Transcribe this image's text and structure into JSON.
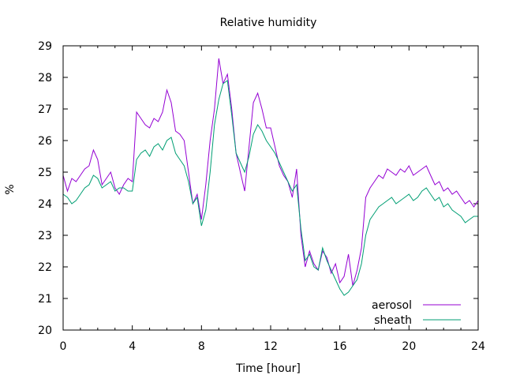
{
  "chart_data": {
    "type": "line",
    "title": "Relative humidity",
    "xlabel": "Time [hour]",
    "ylabel": "%",
    "xlim": [
      0,
      24
    ],
    "ylim": [
      20,
      29
    ],
    "xticks": [
      0,
      4,
      8,
      12,
      16,
      20,
      24
    ],
    "yticks": [
      20,
      21,
      22,
      23,
      24,
      25,
      26,
      27,
      28,
      29
    ],
    "grid": false,
    "legend_position": "bottom-right",
    "series": [
      {
        "name": "aerosol",
        "color": "#9400d3",
        "x": [
          0,
          0.25,
          0.5,
          0.75,
          1,
          1.25,
          1.5,
          1.75,
          2,
          2.25,
          2.5,
          2.75,
          3,
          3.25,
          3.5,
          3.75,
          4,
          4.25,
          4.5,
          4.75,
          5,
          5.25,
          5.5,
          5.75,
          6,
          6.25,
          6.5,
          6.75,
          7,
          7.25,
          7.5,
          7.75,
          8,
          8.25,
          8.5,
          8.75,
          9,
          9.25,
          9.5,
          9.75,
          10,
          10.25,
          10.5,
          10.75,
          11,
          11.25,
          11.5,
          11.75,
          12,
          12.25,
          12.5,
          12.75,
          13,
          13.25,
          13.5,
          13.75,
          14,
          14.25,
          14.5,
          14.75,
          15,
          15.25,
          15.5,
          15.75,
          16,
          16.25,
          16.5,
          16.75,
          17,
          17.25,
          17.5,
          17.75,
          18,
          18.25,
          18.5,
          18.75,
          19,
          19.25,
          19.5,
          19.75,
          20,
          20.25,
          20.5,
          20.75,
          21,
          21.25,
          21.5,
          21.75,
          22,
          22.25,
          22.5,
          22.75,
          23,
          23.25,
          23.5,
          23.75,
          24
        ],
        "values": [
          24.9,
          24.4,
          24.8,
          24.7,
          24.9,
          25.1,
          25.2,
          25.7,
          25.4,
          24.6,
          24.8,
          25.0,
          24.5,
          24.3,
          24.6,
          24.8,
          24.7,
          26.9,
          26.7,
          26.5,
          26.4,
          26.7,
          26.6,
          26.9,
          27.6,
          27.2,
          26.3,
          26.2,
          26.0,
          25.0,
          24.0,
          24.3,
          23.5,
          24.6,
          26.0,
          27.0,
          28.6,
          27.8,
          28.1,
          27.0,
          25.6,
          25.0,
          24.4,
          25.8,
          27.2,
          27.5,
          27.0,
          26.4,
          26.4,
          25.8,
          25.2,
          24.9,
          24.7,
          24.2,
          25.1,
          23.0,
          22.0,
          22.5,
          22.1,
          21.9,
          22.5,
          22.3,
          21.8,
          22.1,
          21.5,
          21.7,
          22.4,
          21.4,
          21.9,
          22.6,
          24.2,
          24.5,
          24.7,
          24.9,
          24.8,
          25.1,
          25.0,
          24.9,
          25.1,
          25.0,
          25.2,
          24.9,
          25.0,
          25.1,
          25.2,
          24.9,
          24.6,
          24.7,
          24.4,
          24.5,
          24.3,
          24.4,
          24.2,
          24.0,
          24.1,
          23.9,
          24.1
        ],
        "legend_label": "aerosol"
      },
      {
        "name": "sheath",
        "color": "#009e73",
        "x": [
          0,
          0.25,
          0.5,
          0.75,
          1,
          1.25,
          1.5,
          1.75,
          2,
          2.25,
          2.5,
          2.75,
          3,
          3.25,
          3.5,
          3.75,
          4,
          4.25,
          4.5,
          4.75,
          5,
          5.25,
          5.5,
          5.75,
          6,
          6.25,
          6.5,
          6.75,
          7,
          7.25,
          7.5,
          7.75,
          8,
          8.25,
          8.5,
          8.75,
          9,
          9.25,
          9.5,
          9.75,
          10,
          10.25,
          10.5,
          10.75,
          11,
          11.25,
          11.5,
          11.75,
          12,
          12.25,
          12.5,
          12.75,
          13,
          13.25,
          13.5,
          13.75,
          14,
          14.25,
          14.5,
          14.75,
          15,
          15.25,
          15.5,
          15.75,
          16,
          16.25,
          16.5,
          16.75,
          17,
          17.25,
          17.5,
          17.75,
          18,
          18.25,
          18.5,
          18.75,
          19,
          19.25,
          19.5,
          19.75,
          20,
          20.25,
          20.5,
          20.75,
          21,
          21.25,
          21.5,
          21.75,
          22,
          22.25,
          22.5,
          22.75,
          23,
          23.25,
          23.5,
          23.75,
          24
        ],
        "values": [
          24.3,
          24.2,
          24.0,
          24.1,
          24.3,
          24.5,
          24.6,
          24.9,
          24.8,
          24.5,
          24.6,
          24.7,
          24.4,
          24.5,
          24.5,
          24.4,
          24.4,
          25.4,
          25.6,
          25.7,
          25.5,
          25.8,
          25.9,
          25.7,
          26.0,
          26.1,
          25.6,
          25.4,
          25.2,
          24.7,
          24.0,
          24.2,
          23.3,
          23.8,
          25.0,
          26.5,
          27.3,
          27.8,
          27.9,
          26.8,
          25.6,
          25.3,
          25.0,
          25.5,
          26.2,
          26.5,
          26.3,
          26.0,
          25.8,
          25.6,
          25.3,
          25.0,
          24.7,
          24.4,
          24.6,
          23.2,
          22.2,
          22.4,
          22.0,
          21.9,
          22.6,
          22.2,
          21.9,
          21.6,
          21.3,
          21.1,
          21.2,
          21.4,
          21.6,
          22.1,
          23.0,
          23.5,
          23.7,
          23.9,
          24.0,
          24.1,
          24.2,
          24.0,
          24.1,
          24.2,
          24.3,
          24.1,
          24.2,
          24.4,
          24.5,
          24.3,
          24.1,
          24.2,
          23.9,
          24.0,
          23.8,
          23.7,
          23.6,
          23.4,
          23.5,
          23.6,
          23.6
        ],
        "legend_label": "sheath"
      }
    ]
  }
}
